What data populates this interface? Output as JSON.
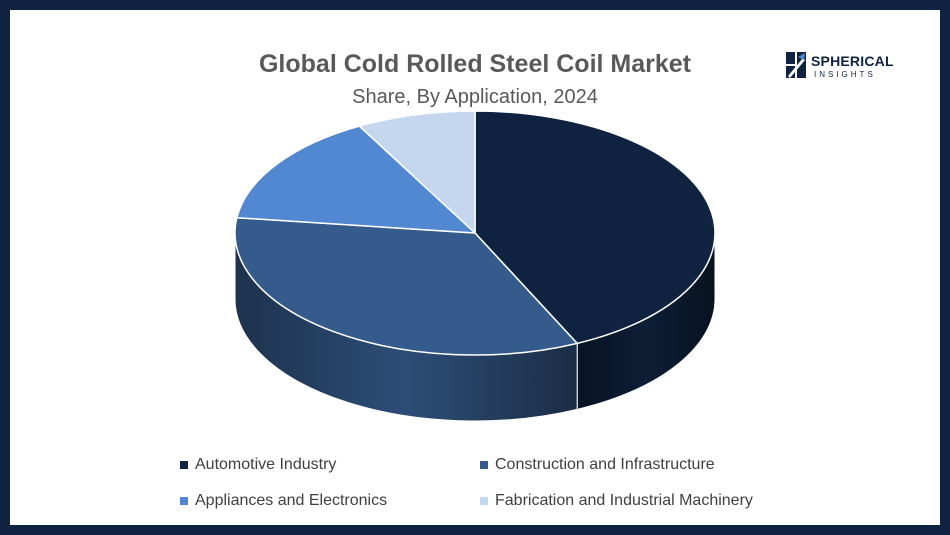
{
  "header": {
    "title": "Global Cold Rolled Steel Coil Market",
    "subtitle": "Share, By Application, 2024"
  },
  "logo": {
    "name": "SPHERICAL",
    "tagline": "INSIGHTS"
  },
  "chart_data": {
    "type": "pie",
    "title": "Global Cold Rolled Steel Coil Market",
    "subtitle": "Share, By Application, 2024",
    "three_d": true,
    "legend_position": "bottom",
    "categories": [
      "Automotive Industry",
      "Construction and Infrastructure",
      "Appliances and Electronics",
      "Fabrication and Industrial Machinery"
    ],
    "values": [
      43,
      34,
      15,
      8
    ],
    "colors": [
      "#0f2340",
      "#355a8c",
      "#5288d2",
      "#c4d7ee"
    ]
  }
}
